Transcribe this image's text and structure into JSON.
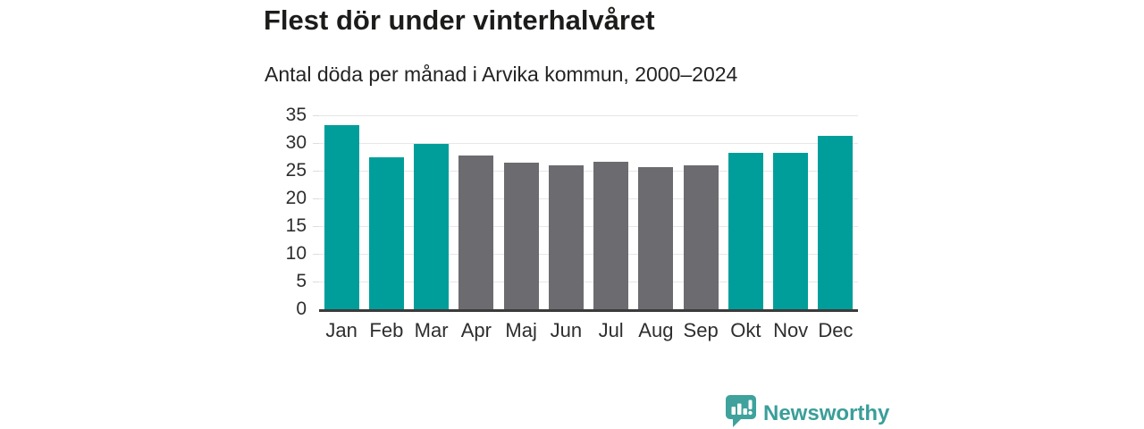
{
  "header": {
    "title": "Flest dör under vinterhalvåret",
    "subtitle": "Antal döda per månad i Arvika kommun, 2000–2024"
  },
  "chart_data": {
    "type": "bar",
    "title": "Flest dör under vinterhalvåret",
    "subtitle": "Antal döda per månad i Arvika kommun, 2000–2024",
    "categories": [
      "Jan",
      "Feb",
      "Mar",
      "Apr",
      "Maj",
      "Jun",
      "Jul",
      "Aug",
      "Sep",
      "Okt",
      "Nov",
      "Dec"
    ],
    "values": [
      33.3,
      27.5,
      29.8,
      27.7,
      26.4,
      26.0,
      26.6,
      25.6,
      26.0,
      28.3,
      28.3,
      31.3
    ],
    "bar_styles": [
      "highlight",
      "highlight",
      "highlight",
      "muted",
      "muted",
      "muted",
      "muted",
      "muted",
      "muted",
      "highlight",
      "highlight",
      "highlight"
    ],
    "palette": {
      "highlight": "#009e9a",
      "muted": "#6b6b70"
    },
    "xlabel": "",
    "ylabel": "",
    "ylim": [
      0,
      35
    ],
    "yticks": [
      0,
      5,
      10,
      15,
      20,
      25,
      30,
      35
    ],
    "grid": true,
    "gridline_color": "#e7e7e7",
    "axis_color": "#3b3b3b",
    "legend": "none"
  },
  "footer": {
    "brand": "Newsworthy",
    "brand_color": "#3a9e99"
  }
}
